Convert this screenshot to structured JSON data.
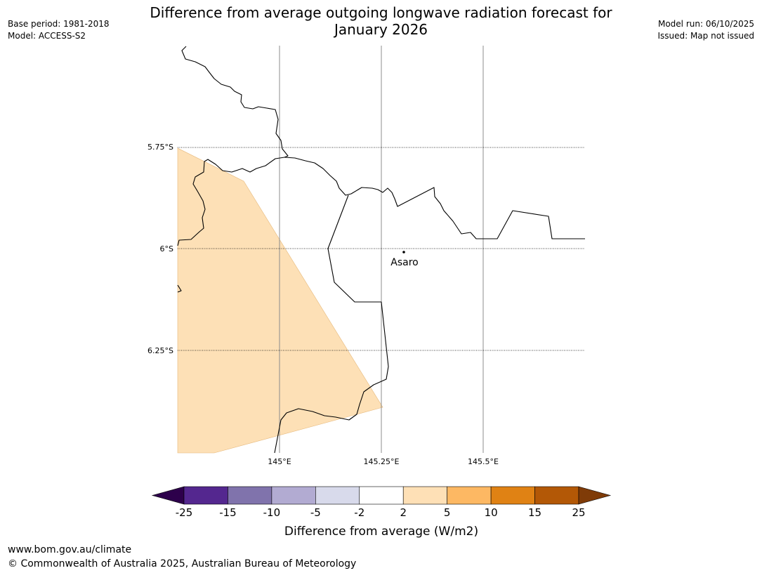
{
  "title_line1": "Difference from average outgoing longwave radiation forecast for",
  "title_line2": "January 2026",
  "meta_left": {
    "base_period": "Base period: 1981-2018",
    "model": "Model: ACCESS-S2"
  },
  "meta_right": {
    "model_run": "Model run: 06/10/2025",
    "issued": "Issued: Map not issued"
  },
  "map": {
    "lat_labels": [
      "5.75°S",
      "6°S",
      "6.25°S"
    ],
    "lon_labels": [
      "145°E",
      "145.25°E",
      "145.5°E"
    ],
    "place": {
      "name": "Asaro"
    },
    "region_category": "2 to 5",
    "region_color": "#fde0b6"
  },
  "colorbar": {
    "label": "Difference from average (W/m2)",
    "ticks": [
      "-25",
      "-15",
      "-10",
      "-5",
      "-2",
      "2",
      "5",
      "10",
      "15",
      "25"
    ],
    "colors": [
      "#54278f",
      "#8073ac",
      "#b2abd2",
      "#d8daeb",
      "#ffffff",
      "#fee0b6",
      "#fdb863",
      "#e08214",
      "#b35806"
    ],
    "extend_low_color": "#2d004b",
    "extend_high_color": "#7f3b08"
  },
  "footer": {
    "url": "www.bom.gov.au/climate",
    "copyright": "© Commonwealth of Australia 2025, Australian Bureau of Meteorology"
  }
}
